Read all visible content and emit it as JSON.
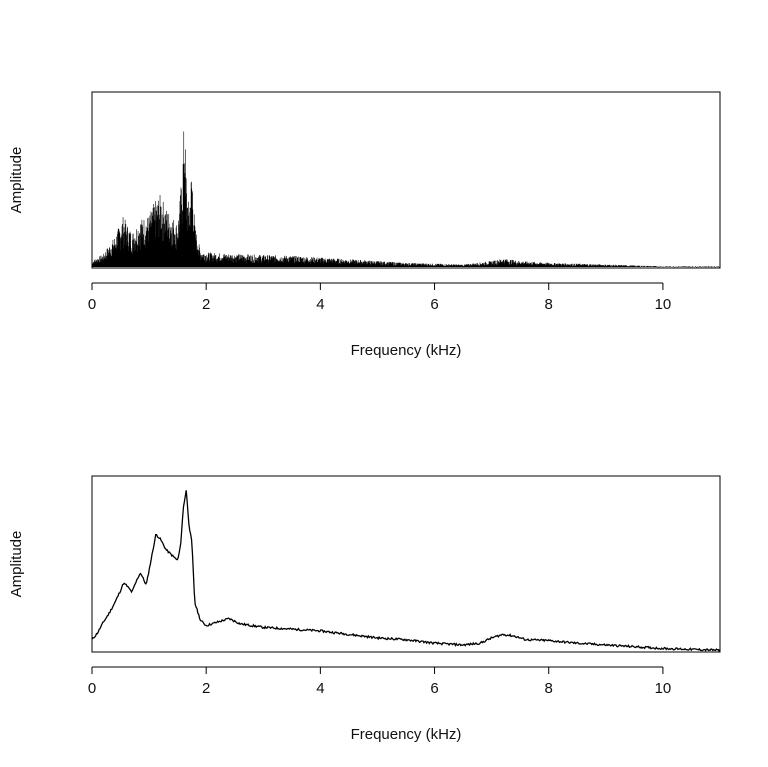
{
  "chart_data": [
    {
      "type": "line",
      "style": "spectrum-spikes",
      "title": "",
      "xlabel": "Frequency (kHz)",
      "ylabel": "Amplitude",
      "xlim": [
        0,
        11
      ],
      "ylim": [
        0,
        1
      ],
      "xticks": [
        0,
        2,
        4,
        6,
        8,
        10
      ],
      "x_tick_labels": [
        "0",
        "2",
        "4",
        "6",
        "8",
        "10"
      ],
      "yticks": [],
      "grid": false,
      "legend": "none",
      "line_color": "#000000",
      "series": [
        {
          "x": [
            0,
            0.2,
            0.4,
            0.55,
            0.6,
            0.7,
            0.85,
            1.0,
            1.1,
            1.2,
            1.3,
            1.4,
            1.5,
            1.58,
            1.62,
            1.66,
            1.7,
            1.75,
            1.8,
            1.9,
            2.0,
            2.2,
            2.5,
            3.0,
            3.5,
            4.0,
            4.5,
            5.0,
            5.5,
            6.0,
            6.5,
            7.0,
            7.2,
            7.5,
            8.0,
            8.5,
            9.0,
            9.5,
            10.0,
            10.5,
            11.0
          ],
          "y": [
            0.04,
            0.08,
            0.18,
            0.3,
            0.26,
            0.2,
            0.28,
            0.3,
            0.38,
            0.42,
            0.34,
            0.3,
            0.25,
            0.55,
            0.9,
            0.45,
            0.35,
            0.6,
            0.25,
            0.1,
            0.09,
            0.085,
            0.08,
            0.075,
            0.07,
            0.06,
            0.05,
            0.04,
            0.03,
            0.025,
            0.02,
            0.04,
            0.055,
            0.04,
            0.03,
            0.025,
            0.02,
            0.015,
            0.01,
            0.01,
            0.01
          ]
        }
      ]
    },
    {
      "type": "line",
      "style": "smoothed",
      "title": "",
      "xlabel": "Frequency (kHz)",
      "ylabel": "Amplitude",
      "xlim": [
        0,
        11
      ],
      "ylim": [
        0,
        1
      ],
      "xticks": [
        0,
        2,
        4,
        6,
        8,
        10
      ],
      "x_tick_labels": [
        "0",
        "2",
        "4",
        "6",
        "8",
        "10"
      ],
      "yticks": [],
      "grid": false,
      "legend": "none",
      "line_color": "#000000",
      "series": [
        {
          "x": [
            0,
            0.1,
            0.2,
            0.3,
            0.4,
            0.5,
            0.55,
            0.6,
            0.7,
            0.8,
            0.85,
            0.95,
            1.05,
            1.12,
            1.2,
            1.3,
            1.4,
            1.5,
            1.55,
            1.6,
            1.65,
            1.7,
            1.75,
            1.8,
            1.9,
            2.0,
            2.2,
            2.4,
            2.6,
            2.8,
            3.0,
            3.5,
            4.0,
            4.5,
            5.0,
            5.5,
            6.0,
            6.5,
            6.8,
            7.0,
            7.2,
            7.4,
            7.6,
            8.0,
            8.5,
            9.0,
            9.5,
            10.0,
            10.5,
            11.0
          ],
          "y": [
            0.07,
            0.11,
            0.17,
            0.22,
            0.28,
            0.35,
            0.39,
            0.38,
            0.34,
            0.42,
            0.45,
            0.38,
            0.55,
            0.67,
            0.64,
            0.58,
            0.55,
            0.52,
            0.6,
            0.82,
            0.92,
            0.72,
            0.62,
            0.28,
            0.18,
            0.15,
            0.17,
            0.19,
            0.16,
            0.15,
            0.14,
            0.13,
            0.12,
            0.1,
            0.08,
            0.07,
            0.05,
            0.04,
            0.05,
            0.08,
            0.1,
            0.09,
            0.07,
            0.065,
            0.05,
            0.04,
            0.03,
            0.02,
            0.015,
            0.01
          ]
        }
      ]
    }
  ]
}
